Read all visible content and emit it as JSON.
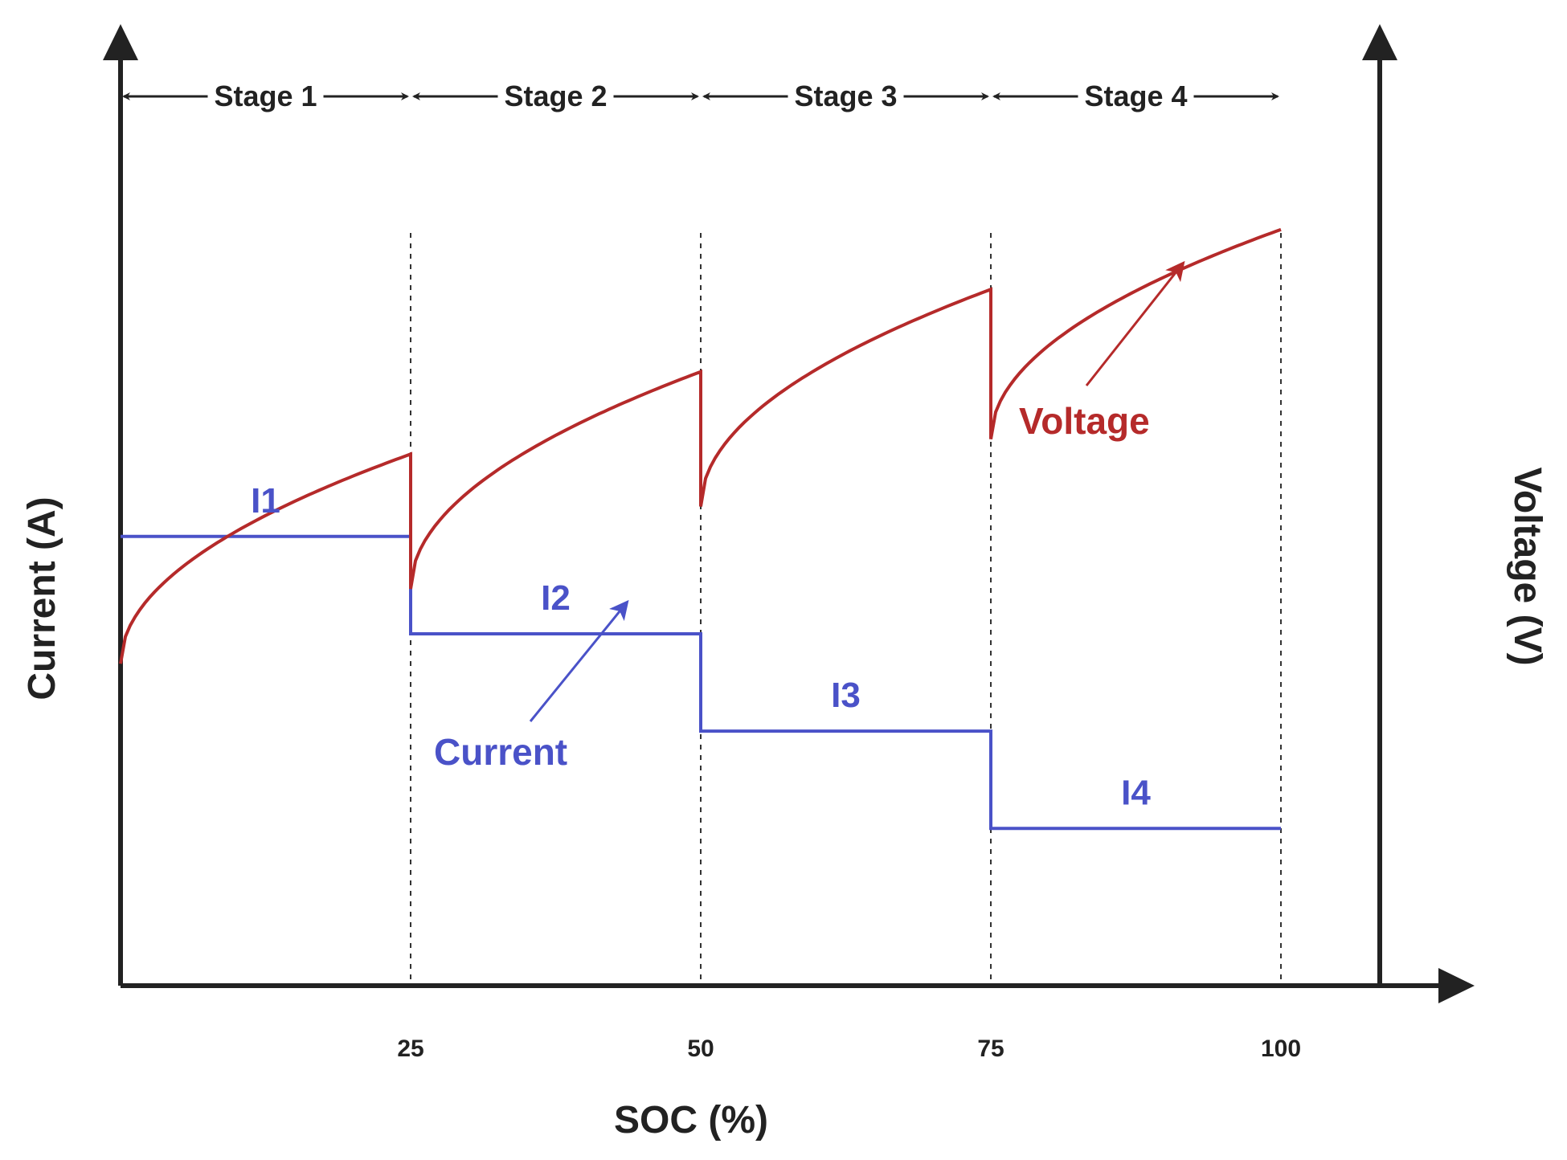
{
  "chart_data": {
    "type": "line",
    "title": "",
    "xlabel": "SOC (%)",
    "ylabel_left": "Current (A)",
    "ylabel_right": "Voltage (V)",
    "xlim": [
      0,
      110
    ],
    "x_ticks": [
      25,
      50,
      75,
      100
    ],
    "x_tick_labels": [
      "25",
      "50",
      "75",
      "100"
    ],
    "stage_boundaries": [
      0,
      25,
      50,
      75,
      100
    ],
    "stages": [
      "Stage 1",
      "Stage 2",
      "Stage 3",
      "Stage 4"
    ],
    "grid": false,
    "series": [
      {
        "name": "Current",
        "role": "step",
        "color": "#4a52c8",
        "segments": [
          {
            "label": "I1",
            "x_start": 0,
            "x_end": 25,
            "level": 0.6
          },
          {
            "label": "I2",
            "x_start": 25,
            "x_end": 50,
            "level": 0.47
          },
          {
            "label": "I3",
            "x_start": 50,
            "x_end": 75,
            "level": 0.34
          },
          {
            "label": "I4",
            "x_start": 75,
            "x_end": 100,
            "level": 0.21
          }
        ]
      },
      {
        "name": "Voltage",
        "role": "sqrt-rise per stage",
        "color": "#b52a2a",
        "segments": [
          {
            "x_start": 0,
            "x_end": 25,
            "v_start": 0.43,
            "v_end": 0.71
          },
          {
            "x_start": 25,
            "x_end": 50,
            "v_start": 0.53,
            "v_end": 0.82
          },
          {
            "x_start": 50,
            "x_end": 75,
            "v_start": 0.64,
            "v_end": 0.93
          },
          {
            "x_start": 75,
            "x_end": 100,
            "v_start": 0.73,
            "v_end": 1.01
          }
        ]
      }
    ],
    "annotations": [
      {
        "text": "Current",
        "points_to_series": "Current",
        "color": "#4a52c8"
      },
      {
        "text": "Voltage",
        "points_to_series": "Voltage",
        "color": "#b52a2a"
      }
    ]
  }
}
